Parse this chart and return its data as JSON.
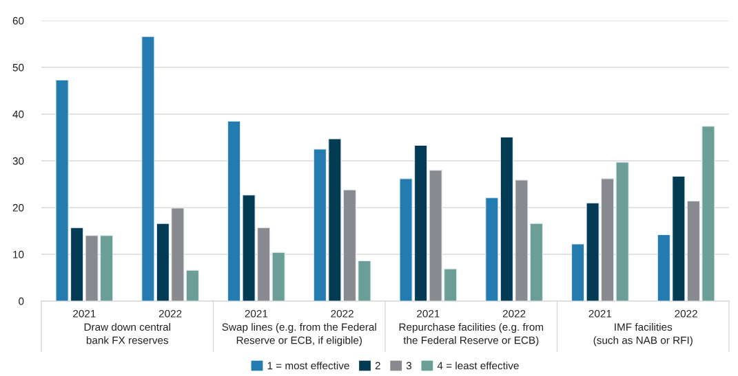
{
  "chart_data": {
    "type": "bar",
    "categories": [
      "2021",
      "2022",
      "2021",
      "2022",
      "2021",
      "2022",
      "2021",
      "2022"
    ],
    "annotations": [
      "Draw down central\nbank FX reserves",
      "Swap lines (e.g. from the Federal\nReserve or ECB, if eligible)",
      "Repurchase facilities (e.g. from\nthe Federal Reserve or ECB)",
      "IMF facilities\n(such as NAB or RFI)"
    ],
    "series": [
      {
        "name": "1 = most effective",
        "color": "#237bb0",
        "values": [
          47.3,
          56.6,
          38.5,
          32.5,
          26.2,
          22.1,
          12.2,
          14.2
        ]
      },
      {
        "name": "2",
        "color": "#033a54",
        "values": [
          15.7,
          16.6,
          22.7,
          34.7,
          33.3,
          35.1,
          21.0,
          26.7
        ]
      },
      {
        "name": "3",
        "color": "#888a8f",
        "values": [
          14.0,
          19.9,
          15.7,
          23.8,
          28.0,
          25.9,
          26.2,
          21.4
        ]
      },
      {
        "name": "4 = least effective",
        "color": "#6a9e96",
        "values": [
          14.0,
          6.6,
          10.4,
          8.6,
          6.9,
          16.6,
          29.7,
          37.4
        ]
      }
    ],
    "ylim": [
      0,
      60
    ],
    "yticks": [
      0,
      10,
      20,
      30,
      40,
      50,
      60
    ],
    "grid": "y",
    "legend": "bottom"
  }
}
